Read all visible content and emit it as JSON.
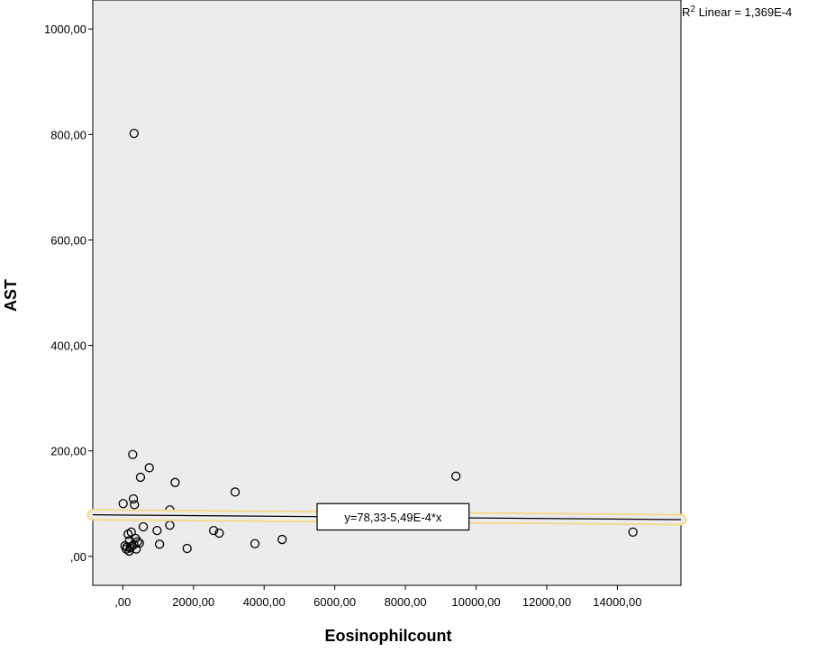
{
  "chart_data": {
    "type": "scatter",
    "xlabel": "Eosinophilcount",
    "ylabel": "AST",
    "xlim": [
      -850,
      15800
    ],
    "ylim": [
      -55,
      1055
    ],
    "x_ticks": [
      0,
      2000,
      4000,
      6000,
      8000,
      10000,
      12000,
      14000
    ],
    "x_tick_labels": [
      ",00",
      "2000,00",
      "4000,00",
      "6000,00",
      "8000,00",
      "10000,00",
      "12000,00",
      "14000,00"
    ],
    "y_ticks": [
      0,
      200,
      400,
      600,
      800,
      1000
    ],
    "y_tick_labels": [
      ",00",
      "200,00",
      "400,00",
      "600,00",
      "800,00",
      "1000,00"
    ],
    "points": [
      {
        "x": 320,
        "y": 802
      },
      {
        "x": 280,
        "y": 193
      },
      {
        "x": 750,
        "y": 168
      },
      {
        "x": 500,
        "y": 150
      },
      {
        "x": 1480,
        "y": 140
      },
      {
        "x": 3180,
        "y": 122
      },
      {
        "x": 9430,
        "y": 152
      },
      {
        "x": 300,
        "y": 109
      },
      {
        "x": 10,
        "y": 100
      },
      {
        "x": 330,
        "y": 98
      },
      {
        "x": 1330,
        "y": 88
      },
      {
        "x": 580,
        "y": 56
      },
      {
        "x": 1330,
        "y": 59
      },
      {
        "x": 970,
        "y": 49
      },
      {
        "x": 2570,
        "y": 49
      },
      {
        "x": 2730,
        "y": 44
      },
      {
        "x": 14440,
        "y": 46
      },
      {
        "x": 4510,
        "y": 32
      },
      {
        "x": 3740,
        "y": 24
      },
      {
        "x": 1040,
        "y": 23
      },
      {
        "x": 1820,
        "y": 15
      },
      {
        "x": 150,
        "y": 42
      },
      {
        "x": 240,
        "y": 46
      },
      {
        "x": 360,
        "y": 34
      },
      {
        "x": 420,
        "y": 28
      },
      {
        "x": 190,
        "y": 30
      },
      {
        "x": 470,
        "y": 25
      },
      {
        "x": 310,
        "y": 22
      },
      {
        "x": 60,
        "y": 20
      },
      {
        "x": 120,
        "y": 18
      },
      {
        "x": 210,
        "y": 16
      },
      {
        "x": 100,
        "y": 14
      },
      {
        "x": 380,
        "y": 14
      },
      {
        "x": 250,
        "y": 19
      },
      {
        "x": 180,
        "y": 10
      }
    ],
    "fit_line": {
      "intercept": 78.33,
      "slope": -0.000549,
      "x_start": -850,
      "x_end": 15800
    },
    "equation_label": "y=78,33-5,49E-4*x",
    "r2_label_prefix": "R",
    "r2_label_sup": "2",
    "r2_label_text": " Linear = 1,369E-4",
    "colors": {
      "plot_background": "#ececec",
      "marker_stroke": "#000000",
      "fit_line": "#000000",
      "highlight": "#f0dc8c"
    },
    "grid": false,
    "legend": "none"
  }
}
